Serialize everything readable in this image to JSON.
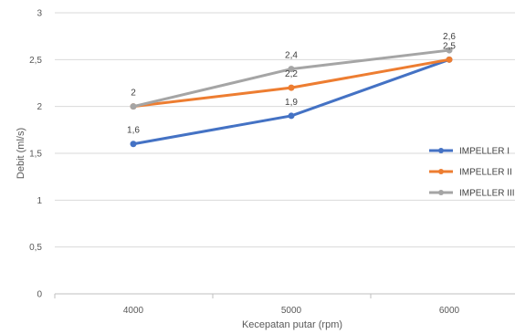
{
  "chart_data": {
    "type": "line",
    "xlabel": "Kecepatan putar (rpm)",
    "ylabel": "Debit (ml/s)",
    "categories": [
      "4000",
      "5000",
      "6000"
    ],
    "ylim": [
      0,
      3
    ],
    "yticks": [
      "0",
      "0,5",
      "1",
      "1,5",
      "2",
      "2,5",
      "3"
    ],
    "grid": true,
    "legend_position": "right",
    "series": [
      {
        "name": "IMPELLER I",
        "color": "#4472C4",
        "values": [
          1.6,
          1.9,
          2.5
        ],
        "labels": [
          "1,6",
          "1,9",
          ""
        ]
      },
      {
        "name": "IMPELLER II",
        "color": "#ED7D31",
        "values": [
          2.0,
          2.2,
          2.5
        ],
        "labels": [
          "",
          "2,2",
          "2,5"
        ]
      },
      {
        "name": "IMPELLER III",
        "color": "#A5A5A5",
        "values": [
          2.0,
          2.4,
          2.6
        ],
        "labels": [
          "2",
          "2,4",
          "2,6"
        ]
      }
    ]
  }
}
